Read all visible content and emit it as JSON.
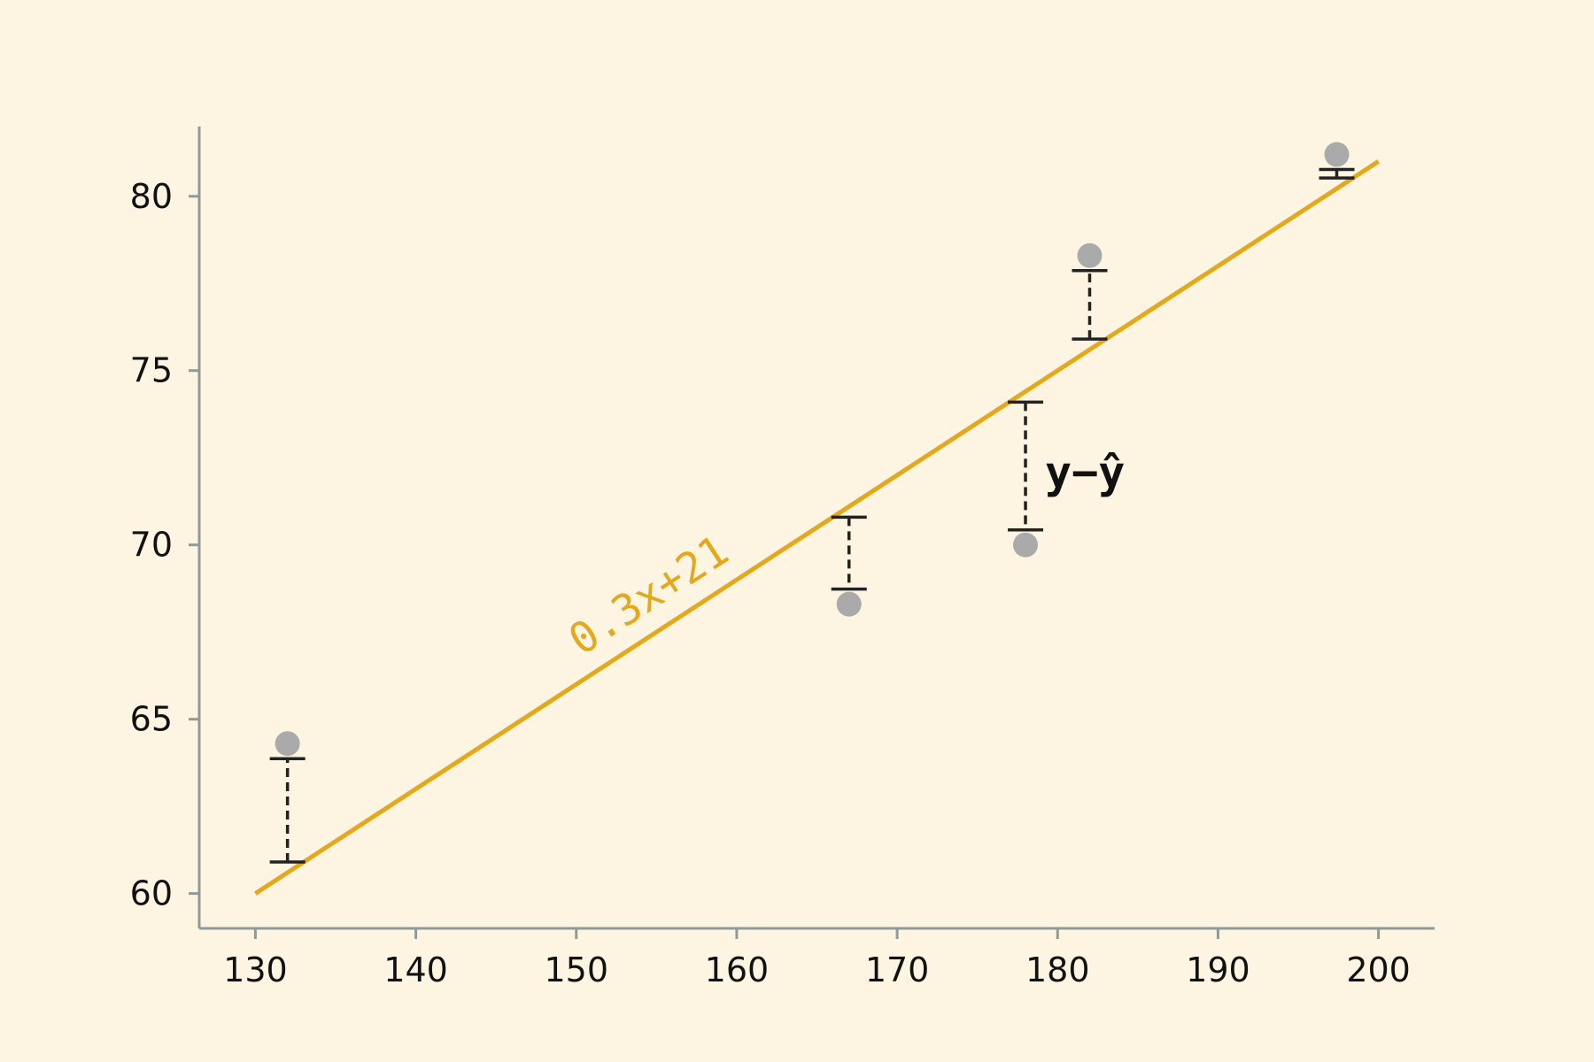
{
  "colors": {
    "background": "#fdf5e2",
    "axis": "#8f9a9a",
    "fit_line": "#e4a81c",
    "points": "#aaaaaa",
    "residuals": "#222222",
    "text": "#111111"
  },
  "chart_data": {
    "type": "scatter",
    "title": "",
    "xlabel": "",
    "ylabel": "",
    "xlim": [
      126.5,
      203.5
    ],
    "ylim": [
      59,
      82
    ],
    "xticks": [
      130,
      140,
      150,
      160,
      170,
      180,
      190,
      200
    ],
    "yticks": [
      60,
      65,
      70,
      75,
      80
    ],
    "grid": false,
    "fit_line": {
      "label": "0.3x+21",
      "slope": 0.3,
      "intercept": 21,
      "x_range": [
        130,
        200
      ]
    },
    "points": [
      {
        "x": 132,
        "y": 64.3
      },
      {
        "x": 167,
        "y": 68.3
      },
      {
        "x": 178,
        "y": 70.0
      },
      {
        "x": 182,
        "y": 78.3
      },
      {
        "x": 197.4,
        "y": 81.2
      }
    ],
    "residual_annotation": "y−ŷ"
  }
}
